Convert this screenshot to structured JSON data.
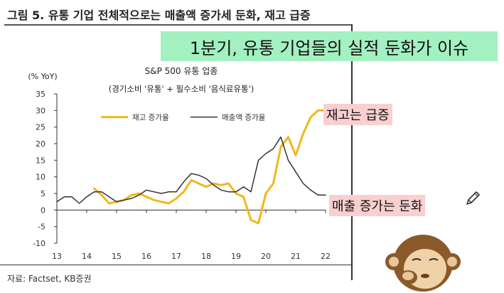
{
  "figure_title": "그림 5. 유통 기업 전체적으로는 매출액 증가세 둔화, 재고 급증",
  "headline": "1분기, 유통 기업들의 실적 둔화가 이슈",
  "callouts": {
    "inventory": "재고는 급증",
    "sales": "매출 증가는 둔화"
  },
  "source": "자료: Factset, KB증권",
  "icons": {
    "pencil": "pencil-icon",
    "mascot": "monkey-mascot-icon"
  },
  "colors": {
    "inventory": "#f0b81b",
    "sales": "#333333",
    "headline_bg": "#a3f0c0",
    "callout_bg": "#f9cfd0"
  },
  "chart_data": {
    "type": "line",
    "title": "S&P 500 유통 업종",
    "subtitle": "(경기소비 '유통' + 필수소비 '음식료유통')",
    "ylabel": "(% YoY)",
    "xlabel": "",
    "ylim": [
      -10,
      35
    ],
    "xlim": [
      13,
      22
    ],
    "yticks": [
      35,
      30,
      25,
      20,
      15,
      10,
      5,
      0,
      -5,
      -10
    ],
    "xticks": [
      13,
      14,
      15,
      16,
      17,
      18,
      19,
      20,
      21,
      22
    ],
    "grid": false,
    "legend": "top-left",
    "series": [
      {
        "name": "재고 증가율",
        "color": "#f0b81b",
        "x": [
          14.25,
          14.5,
          14.75,
          15.0,
          15.25,
          15.5,
          15.75,
          16.0,
          16.25,
          16.5,
          16.75,
          17.0,
          17.25,
          17.5,
          17.75,
          18.0,
          18.25,
          18.5,
          18.75,
          19.0,
          19.25,
          19.5,
          19.75,
          20.0,
          20.25,
          20.5,
          20.75,
          21.0,
          21.25,
          21.5,
          21.75,
          22.0
        ],
        "values": [
          6.5,
          4.5,
          2.0,
          2.5,
          3.0,
          4.5,
          5.0,
          4.0,
          3.0,
          2.5,
          2.0,
          3.5,
          5.5,
          9.0,
          8.0,
          7.0,
          8.0,
          7.5,
          8.0,
          5.0,
          4.0,
          -3.0,
          -4.0,
          5.0,
          8.0,
          19.0,
          22.0,
          16.5,
          23.0,
          28.0,
          30.0,
          30.0
        ]
      },
      {
        "name": "매출액 증가율",
        "color": "#333333",
        "x": [
          13.0,
          13.25,
          13.5,
          13.75,
          14.0,
          14.25,
          14.5,
          14.75,
          15.0,
          15.25,
          15.5,
          15.75,
          16.0,
          16.25,
          16.5,
          16.75,
          17.0,
          17.25,
          17.5,
          17.75,
          18.0,
          18.25,
          18.5,
          18.75,
          19.0,
          19.25,
          19.5,
          19.75,
          20.0,
          20.25,
          20.5,
          20.75,
          21.0,
          21.25,
          21.5,
          21.75,
          22.0
        ],
        "values": [
          2.5,
          4.0,
          4.0,
          2.0,
          4.0,
          5.5,
          5.5,
          4.0,
          2.5,
          3.0,
          3.5,
          4.5,
          6.0,
          5.5,
          5.0,
          5.5,
          5.5,
          8.5,
          11.0,
          10.5,
          9.5,
          7.5,
          6.0,
          5.5,
          5.5,
          7.0,
          5.5,
          15.0,
          17.0,
          18.5,
          22.0,
          15.0,
          11.5,
          8.0,
          6.0,
          4.5,
          4.5
        ]
      }
    ]
  }
}
